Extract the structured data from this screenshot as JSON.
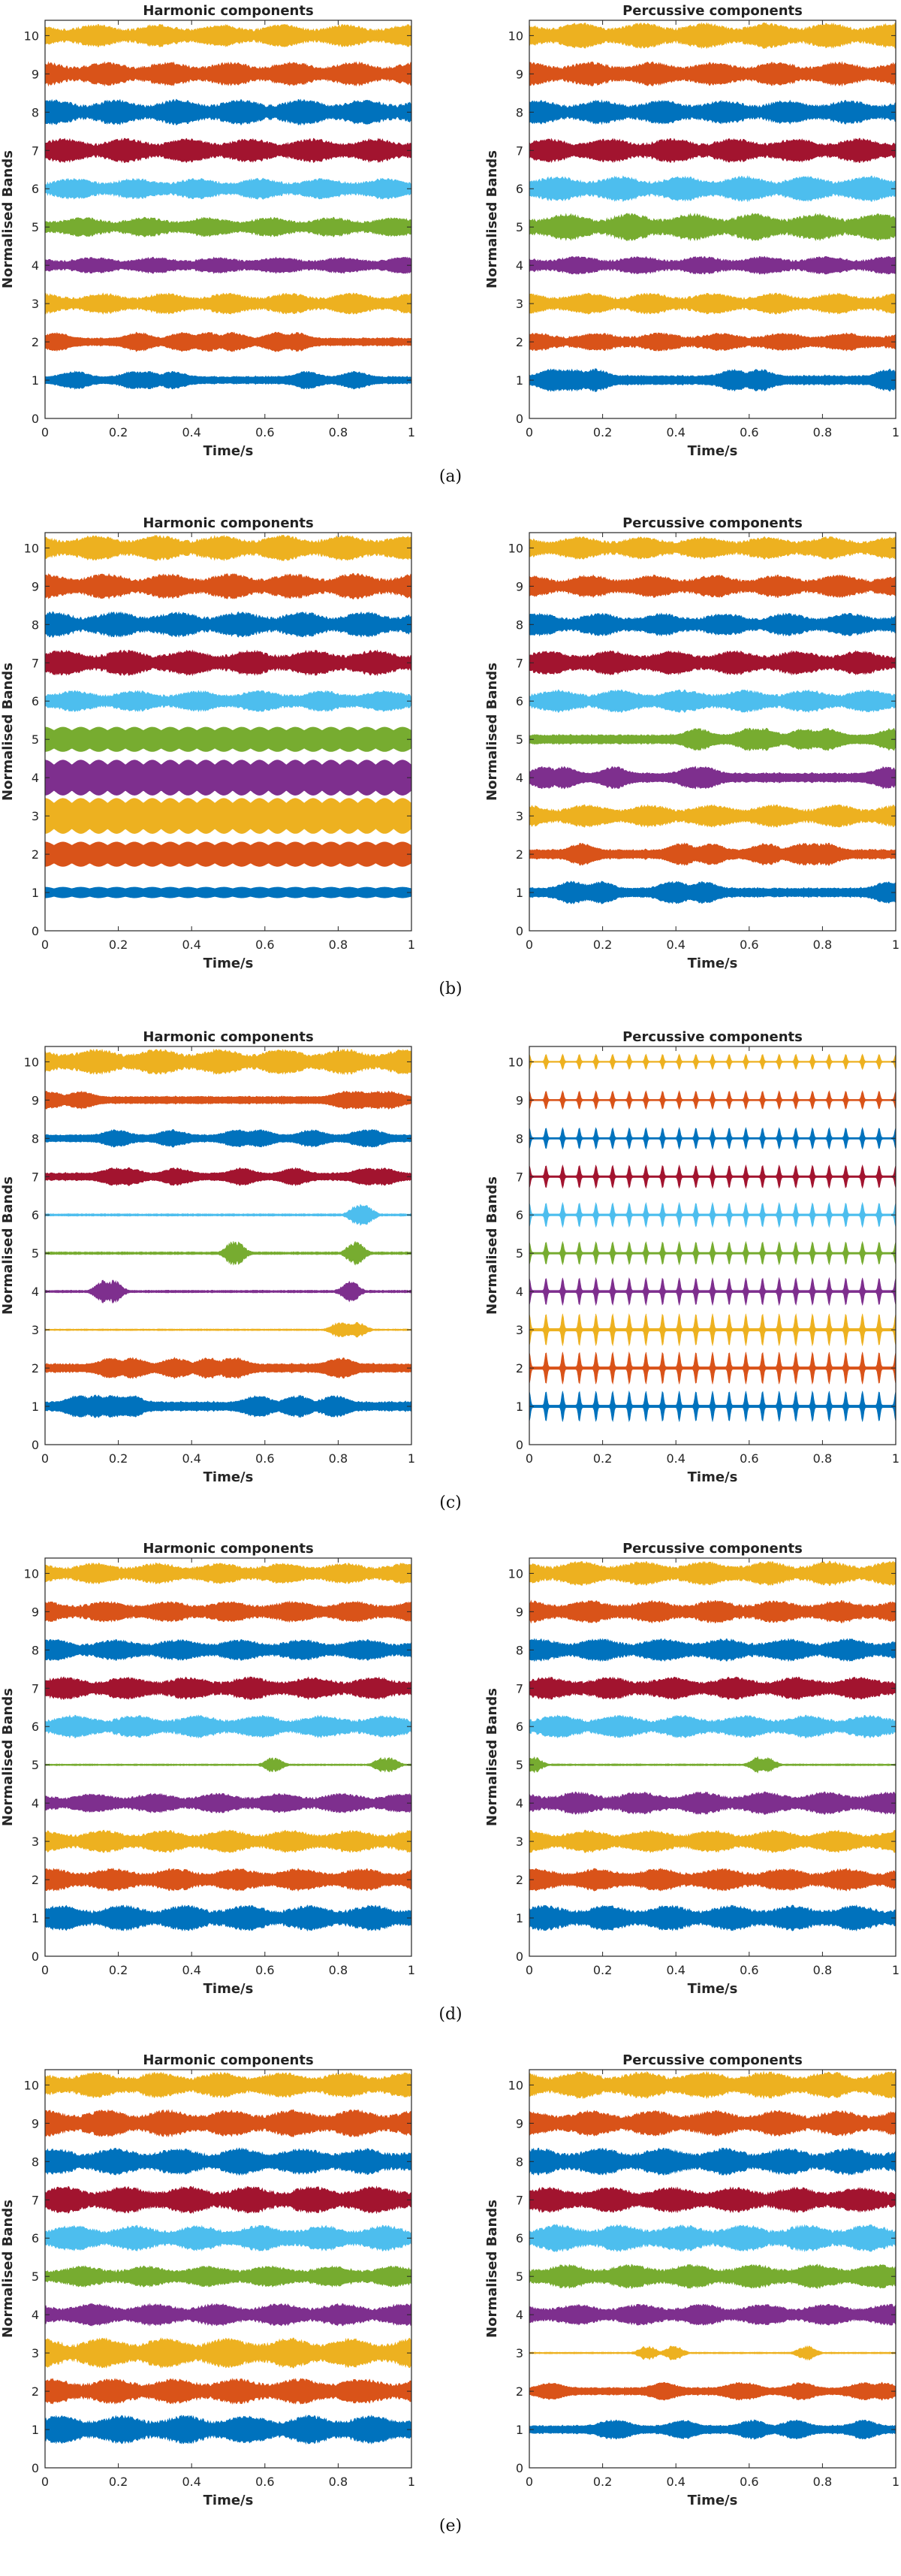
{
  "figure": {
    "rows": [
      {
        "caption": "(a)",
        "panels": [
          0,
          1
        ]
      },
      {
        "caption": "(b)",
        "panels": [
          2,
          3
        ]
      },
      {
        "caption": "(c)",
        "panels": [
          4,
          5
        ]
      },
      {
        "caption": "(d)",
        "panels": [
          6,
          7
        ]
      },
      {
        "caption": "(e)",
        "panels": [
          8,
          9
        ]
      }
    ],
    "band_colors": [
      "#0072BD",
      "#D95319",
      "#EDB120",
      "#7E2F8E",
      "#77AC30",
      "#4DBEEE",
      "#A2142F",
      "#0072BD",
      "#D95319",
      "#EDB120"
    ]
  },
  "chart_data": [
    {
      "type": "line",
      "panel": "(a)",
      "title": "Harmonic components",
      "xlabel": "Time/s",
      "ylabel": "Normalised Bands",
      "xlim": [
        0,
        1
      ],
      "ylim": [
        0,
        10.4
      ],
      "xticks": [
        "0",
        "0.2",
        "0.4",
        "0.6",
        "0.8",
        "1"
      ],
      "yticks": [
        "0",
        "1",
        "2",
        "3",
        "4",
        "5",
        "6",
        "7",
        "8",
        "9",
        "10"
      ],
      "series": [
        {
          "name": "Band 1",
          "offset": 1,
          "amplitude": 0.24,
          "style": "bursts"
        },
        {
          "name": "Band 2",
          "offset": 2,
          "amplitude": 0.26,
          "style": "bursts"
        },
        {
          "name": "Band 3",
          "offset": 3,
          "amplitude": 0.28,
          "style": "noisy"
        },
        {
          "name": "Band 4",
          "offset": 4,
          "amplitude": 0.22,
          "style": "noisy"
        },
        {
          "name": "Band 5",
          "offset": 5,
          "amplitude": 0.26,
          "style": "noisy"
        },
        {
          "name": "Band 6",
          "offset": 6,
          "amplitude": 0.28,
          "style": "noisy"
        },
        {
          "name": "Band 7",
          "offset": 7,
          "amplitude": 0.32,
          "style": "noisy"
        },
        {
          "name": "Band 8",
          "offset": 8,
          "amplitude": 0.34,
          "style": "noisy"
        },
        {
          "name": "Band 9",
          "offset": 9,
          "amplitude": 0.32,
          "style": "noisy"
        },
        {
          "name": "Band 10",
          "offset": 10,
          "amplitude": 0.3,
          "style": "noisy"
        }
      ]
    },
    {
      "type": "line",
      "panel": "(a)",
      "title": "Percussive components",
      "xlabel": "Time/s",
      "ylabel": "Normalised Bands",
      "xlim": [
        0,
        1
      ],
      "ylim": [
        0,
        10.4
      ],
      "xticks": [
        "0",
        "0.2",
        "0.4",
        "0.6",
        "0.8",
        "1"
      ],
      "yticks": [
        "0",
        "1",
        "2",
        "3",
        "4",
        "5",
        "6",
        "7",
        "8",
        "9",
        "10"
      ],
      "series": [
        {
          "name": "Band 1",
          "offset": 1,
          "amplitude": 0.3,
          "style": "bursts"
        },
        {
          "name": "Band 2",
          "offset": 2,
          "amplitude": 0.24,
          "style": "noisy"
        },
        {
          "name": "Band 3",
          "offset": 3,
          "amplitude": 0.28,
          "style": "noisy"
        },
        {
          "name": "Band 4",
          "offset": 4,
          "amplitude": 0.24,
          "style": "noisy"
        },
        {
          "name": "Band 5",
          "offset": 5,
          "amplitude": 0.36,
          "style": "noisy"
        },
        {
          "name": "Band 6",
          "offset": 6,
          "amplitude": 0.34,
          "style": "noisy"
        },
        {
          "name": "Band 7",
          "offset": 7,
          "amplitude": 0.32,
          "style": "noisy"
        },
        {
          "name": "Band 8",
          "offset": 8,
          "amplitude": 0.32,
          "style": "noisy"
        },
        {
          "name": "Band 9",
          "offset": 9,
          "amplitude": 0.32,
          "style": "noisy"
        },
        {
          "name": "Band 10",
          "offset": 10,
          "amplitude": 0.34,
          "style": "noisy"
        }
      ]
    },
    {
      "type": "line",
      "panel": "(b)",
      "title": "Harmonic components",
      "xlabel": "Time/s",
      "ylabel": "Normalised Bands",
      "xlim": [
        0,
        1
      ],
      "ylim": [
        0,
        10.4
      ],
      "xticks": [
        "0",
        "0.2",
        "0.4",
        "0.6",
        "0.8",
        "1"
      ],
      "yticks": [
        "0",
        "1",
        "2",
        "3",
        "4",
        "5",
        "6",
        "7",
        "8",
        "9",
        "10"
      ],
      "series": [
        {
          "name": "Band 1",
          "offset": 1,
          "amplitude": 0.14,
          "style": "tonal"
        },
        {
          "name": "Band 2",
          "offset": 2,
          "amplitude": 0.32,
          "style": "tonal"
        },
        {
          "name": "Band 3",
          "offset": 3,
          "amplitude": 0.46,
          "style": "tonal"
        },
        {
          "name": "Band 4",
          "offset": 4,
          "amplitude": 0.46,
          "style": "tonal"
        },
        {
          "name": "Band 5",
          "offset": 5,
          "amplitude": 0.32,
          "style": "tonal"
        },
        {
          "name": "Band 6",
          "offset": 6,
          "amplitude": 0.28,
          "style": "noisy"
        },
        {
          "name": "Band 7",
          "offset": 7,
          "amplitude": 0.34,
          "style": "noisy"
        },
        {
          "name": "Band 8",
          "offset": 8,
          "amplitude": 0.34,
          "style": "noisy"
        },
        {
          "name": "Band 9",
          "offset": 9,
          "amplitude": 0.34,
          "style": "noisy"
        },
        {
          "name": "Band 10",
          "offset": 10,
          "amplitude": 0.34,
          "style": "noisy"
        }
      ]
    },
    {
      "type": "line",
      "panel": "(b)",
      "title": "Percussive components",
      "xlabel": "Time/s",
      "ylabel": "Normalised Bands",
      "xlim": [
        0,
        1
      ],
      "ylim": [
        0,
        10.4
      ],
      "xticks": [
        "0",
        "0.2",
        "0.4",
        "0.6",
        "0.8",
        "1"
      ],
      "yticks": [
        "0",
        "1",
        "2",
        "3",
        "4",
        "5",
        "6",
        "7",
        "8",
        "9",
        "10"
      ],
      "series": [
        {
          "name": "Band 1",
          "offset": 1,
          "amplitude": 0.3,
          "style": "bursts"
        },
        {
          "name": "Band 2",
          "offset": 2,
          "amplitude": 0.3,
          "style": "bursts"
        },
        {
          "name": "Band 3",
          "offset": 3,
          "amplitude": 0.3,
          "style": "noisy"
        },
        {
          "name": "Band 4",
          "offset": 4,
          "amplitude": 0.3,
          "style": "bursts"
        },
        {
          "name": "Band 5",
          "offset": 5,
          "amplitude": 0.3,
          "style": "bursts"
        },
        {
          "name": "Band 6",
          "offset": 6,
          "amplitude": 0.3,
          "style": "noisy"
        },
        {
          "name": "Band 7",
          "offset": 7,
          "amplitude": 0.32,
          "style": "noisy"
        },
        {
          "name": "Band 8",
          "offset": 8,
          "amplitude": 0.3,
          "style": "noisy"
        },
        {
          "name": "Band 9",
          "offset": 9,
          "amplitude": 0.3,
          "style": "noisy"
        },
        {
          "name": "Band 10",
          "offset": 10,
          "amplitude": 0.3,
          "style": "noisy"
        }
      ]
    },
    {
      "type": "line",
      "panel": "(c)",
      "title": "Harmonic components",
      "xlabel": "Time/s",
      "ylabel": "Normalised Bands",
      "xlim": [
        0,
        1
      ],
      "ylim": [
        0,
        10.4
      ],
      "xticks": [
        "0",
        "0.2",
        "0.4",
        "0.6",
        "0.8",
        "1"
      ],
      "yticks": [
        "0",
        "1",
        "2",
        "3",
        "4",
        "5",
        "6",
        "7",
        "8",
        "9",
        "10"
      ],
      "series": [
        {
          "name": "Band 1",
          "offset": 1,
          "amplitude": 0.3,
          "style": "bursts"
        },
        {
          "name": "Band 2",
          "offset": 2,
          "amplitude": 0.28,
          "style": "bursts"
        },
        {
          "name": "Band 3",
          "offset": 3,
          "amplitude": 0.2,
          "style": "sparse"
        },
        {
          "name": "Band 4",
          "offset": 4,
          "amplitude": 0.3,
          "style": "sparse"
        },
        {
          "name": "Band 5",
          "offset": 5,
          "amplitude": 0.32,
          "style": "sparse"
        },
        {
          "name": "Band 6",
          "offset": 6,
          "amplitude": 0.28,
          "style": "sparse"
        },
        {
          "name": "Band 7",
          "offset": 7,
          "amplitude": 0.24,
          "style": "bursts"
        },
        {
          "name": "Band 8",
          "offset": 8,
          "amplitude": 0.24,
          "style": "bursts"
        },
        {
          "name": "Band 9",
          "offset": 9,
          "amplitude": 0.24,
          "style": "bursts"
        },
        {
          "name": "Band 10",
          "offset": 10,
          "amplitude": 0.34,
          "style": "noisy"
        }
      ]
    },
    {
      "type": "line",
      "panel": "(c)",
      "title": "Percussive components",
      "xlabel": "Time/s",
      "ylabel": "Normalised Bands",
      "xlim": [
        0,
        1
      ],
      "ylim": [
        0,
        10.4
      ],
      "xticks": [
        "0",
        "0.2",
        "0.4",
        "0.6",
        "0.8",
        "1"
      ],
      "yticks": [
        "0",
        "1",
        "2",
        "3",
        "4",
        "5",
        "6",
        "7",
        "8",
        "9",
        "10"
      ],
      "series": [
        {
          "name": "Band 1",
          "offset": 1,
          "amplitude": 0.4,
          "style": "pulses"
        },
        {
          "name": "Band 2",
          "offset": 2,
          "amplitude": 0.42,
          "style": "pulses"
        },
        {
          "name": "Band 3",
          "offset": 3,
          "amplitude": 0.42,
          "style": "pulses"
        },
        {
          "name": "Band 4",
          "offset": 4,
          "amplitude": 0.36,
          "style": "pulses"
        },
        {
          "name": "Band 5",
          "offset": 5,
          "amplitude": 0.3,
          "style": "pulses"
        },
        {
          "name": "Band 6",
          "offset": 6,
          "amplitude": 0.32,
          "style": "pulses"
        },
        {
          "name": "Band 7",
          "offset": 7,
          "amplitude": 0.3,
          "style": "pulses"
        },
        {
          "name": "Band 8",
          "offset": 8,
          "amplitude": 0.28,
          "style": "pulses"
        },
        {
          "name": "Band 9",
          "offset": 9,
          "amplitude": 0.24,
          "style": "pulses"
        },
        {
          "name": "Band 10",
          "offset": 10,
          "amplitude": 0.2,
          "style": "pulses"
        }
      ]
    },
    {
      "type": "line",
      "panel": "(d)",
      "title": "Harmonic components",
      "xlabel": "Time/s",
      "ylabel": "Normalised Bands",
      "xlim": [
        0,
        1
      ],
      "ylim": [
        0,
        10.4
      ],
      "xticks": [
        "0",
        "0.2",
        "0.4",
        "0.6",
        "0.8",
        "1"
      ],
      "yticks": [
        "0",
        "1",
        "2",
        "3",
        "4",
        "5",
        "6",
        "7",
        "8",
        "9",
        "10"
      ],
      "series": [
        {
          "name": "Band 1",
          "offset": 1,
          "amplitude": 0.34,
          "style": "noisy"
        },
        {
          "name": "Band 2",
          "offset": 2,
          "amplitude": 0.3,
          "style": "noisy"
        },
        {
          "name": "Band 3",
          "offset": 3,
          "amplitude": 0.3,
          "style": "noisy"
        },
        {
          "name": "Band 4",
          "offset": 4,
          "amplitude": 0.26,
          "style": "noisy"
        },
        {
          "name": "Band 5",
          "offset": 5,
          "amplitude": 0.2,
          "style": "sparse"
        },
        {
          "name": "Band 6",
          "offset": 6,
          "amplitude": 0.3,
          "style": "noisy"
        },
        {
          "name": "Band 7",
          "offset": 7,
          "amplitude": 0.3,
          "style": "noisy"
        },
        {
          "name": "Band 8",
          "offset": 8,
          "amplitude": 0.28,
          "style": "noisy"
        },
        {
          "name": "Band 9",
          "offset": 9,
          "amplitude": 0.28,
          "style": "noisy"
        },
        {
          "name": "Band 10",
          "offset": 10,
          "amplitude": 0.28,
          "style": "noisy"
        }
      ]
    },
    {
      "type": "line",
      "panel": "(d)",
      "title": "Percussive components",
      "xlabel": "Time/s",
      "ylabel": "Normalised Bands",
      "xlim": [
        0,
        1
      ],
      "ylim": [
        0,
        10.4
      ],
      "xticks": [
        "0",
        "0.2",
        "0.4",
        "0.6",
        "0.8",
        "1"
      ],
      "yticks": [
        "0",
        "1",
        "2",
        "3",
        "4",
        "5",
        "6",
        "7",
        "8",
        "9",
        "10"
      ],
      "series": [
        {
          "name": "Band 1",
          "offset": 1,
          "amplitude": 0.34,
          "style": "noisy"
        },
        {
          "name": "Band 2",
          "offset": 2,
          "amplitude": 0.3,
          "style": "noisy"
        },
        {
          "name": "Band 3",
          "offset": 3,
          "amplitude": 0.3,
          "style": "noisy"
        },
        {
          "name": "Band 4",
          "offset": 4,
          "amplitude": 0.3,
          "style": "noisy"
        },
        {
          "name": "Band 5",
          "offset": 5,
          "amplitude": 0.22,
          "style": "sparse"
        },
        {
          "name": "Band 6",
          "offset": 6,
          "amplitude": 0.3,
          "style": "noisy"
        },
        {
          "name": "Band 7",
          "offset": 7,
          "amplitude": 0.3,
          "style": "noisy"
        },
        {
          "name": "Band 8",
          "offset": 8,
          "amplitude": 0.3,
          "style": "noisy"
        },
        {
          "name": "Band 9",
          "offset": 9,
          "amplitude": 0.3,
          "style": "noisy"
        },
        {
          "name": "Band 10",
          "offset": 10,
          "amplitude": 0.32,
          "style": "noisy"
        }
      ]
    },
    {
      "type": "line",
      "panel": "(e)",
      "title": "Harmonic components",
      "xlabel": "Time/s",
      "ylabel": "Normalised Bands",
      "xlim": [
        0,
        1
      ],
      "ylim": [
        0,
        10.4
      ],
      "xticks": [
        "0",
        "0.2",
        "0.4",
        "0.6",
        "0.8",
        "1"
      ],
      "yticks": [
        "0",
        "1",
        "2",
        "3",
        "4",
        "5",
        "6",
        "7",
        "8",
        "9",
        "10"
      ],
      "series": [
        {
          "name": "Band 1",
          "offset": 1,
          "amplitude": 0.38,
          "style": "noisy"
        },
        {
          "name": "Band 2",
          "offset": 2,
          "amplitude": 0.34,
          "style": "noisy"
        },
        {
          "name": "Band 3",
          "offset": 3,
          "amplitude": 0.4,
          "style": "noisy"
        },
        {
          "name": "Band 4",
          "offset": 4,
          "amplitude": 0.3,
          "style": "noisy"
        },
        {
          "name": "Band 5",
          "offset": 5,
          "amplitude": 0.28,
          "style": "noisy"
        },
        {
          "name": "Band 6",
          "offset": 6,
          "amplitude": 0.34,
          "style": "noisy"
        },
        {
          "name": "Band 7",
          "offset": 7,
          "amplitude": 0.36,
          "style": "noisy"
        },
        {
          "name": "Band 8",
          "offset": 8,
          "amplitude": 0.36,
          "style": "noisy"
        },
        {
          "name": "Band 9",
          "offset": 9,
          "amplitude": 0.36,
          "style": "noisy"
        },
        {
          "name": "Band 10",
          "offset": 10,
          "amplitude": 0.34,
          "style": "noisy"
        }
      ]
    },
    {
      "type": "line",
      "panel": "(e)",
      "title": "Percussive components",
      "xlabel": "Time/s",
      "ylabel": "Normalised Bands",
      "xlim": [
        0,
        1
      ],
      "ylim": [
        0,
        10.4
      ],
      "xticks": [
        "0",
        "0.2",
        "0.4",
        "0.6",
        "0.8",
        "1"
      ],
      "yticks": [
        "0",
        "1",
        "2",
        "3",
        "4",
        "5",
        "6",
        "7",
        "8",
        "9",
        "10"
      ],
      "series": [
        {
          "name": "Band 1",
          "offset": 1,
          "amplitude": 0.26,
          "style": "bursts"
        },
        {
          "name": "Band 2",
          "offset": 2,
          "amplitude": 0.24,
          "style": "bursts"
        },
        {
          "name": "Band 3",
          "offset": 3,
          "amplitude": 0.2,
          "style": "sparse"
        },
        {
          "name": "Band 4",
          "offset": 4,
          "amplitude": 0.28,
          "style": "noisy"
        },
        {
          "name": "Band 5",
          "offset": 5,
          "amplitude": 0.32,
          "style": "noisy"
        },
        {
          "name": "Band 6",
          "offset": 6,
          "amplitude": 0.36,
          "style": "noisy"
        },
        {
          "name": "Band 7",
          "offset": 7,
          "amplitude": 0.34,
          "style": "noisy"
        },
        {
          "name": "Band 8",
          "offset": 8,
          "amplitude": 0.36,
          "style": "noisy"
        },
        {
          "name": "Band 9",
          "offset": 9,
          "amplitude": 0.34,
          "style": "noisy"
        },
        {
          "name": "Band 10",
          "offset": 10,
          "amplitude": 0.36,
          "style": "noisy"
        }
      ]
    }
  ]
}
